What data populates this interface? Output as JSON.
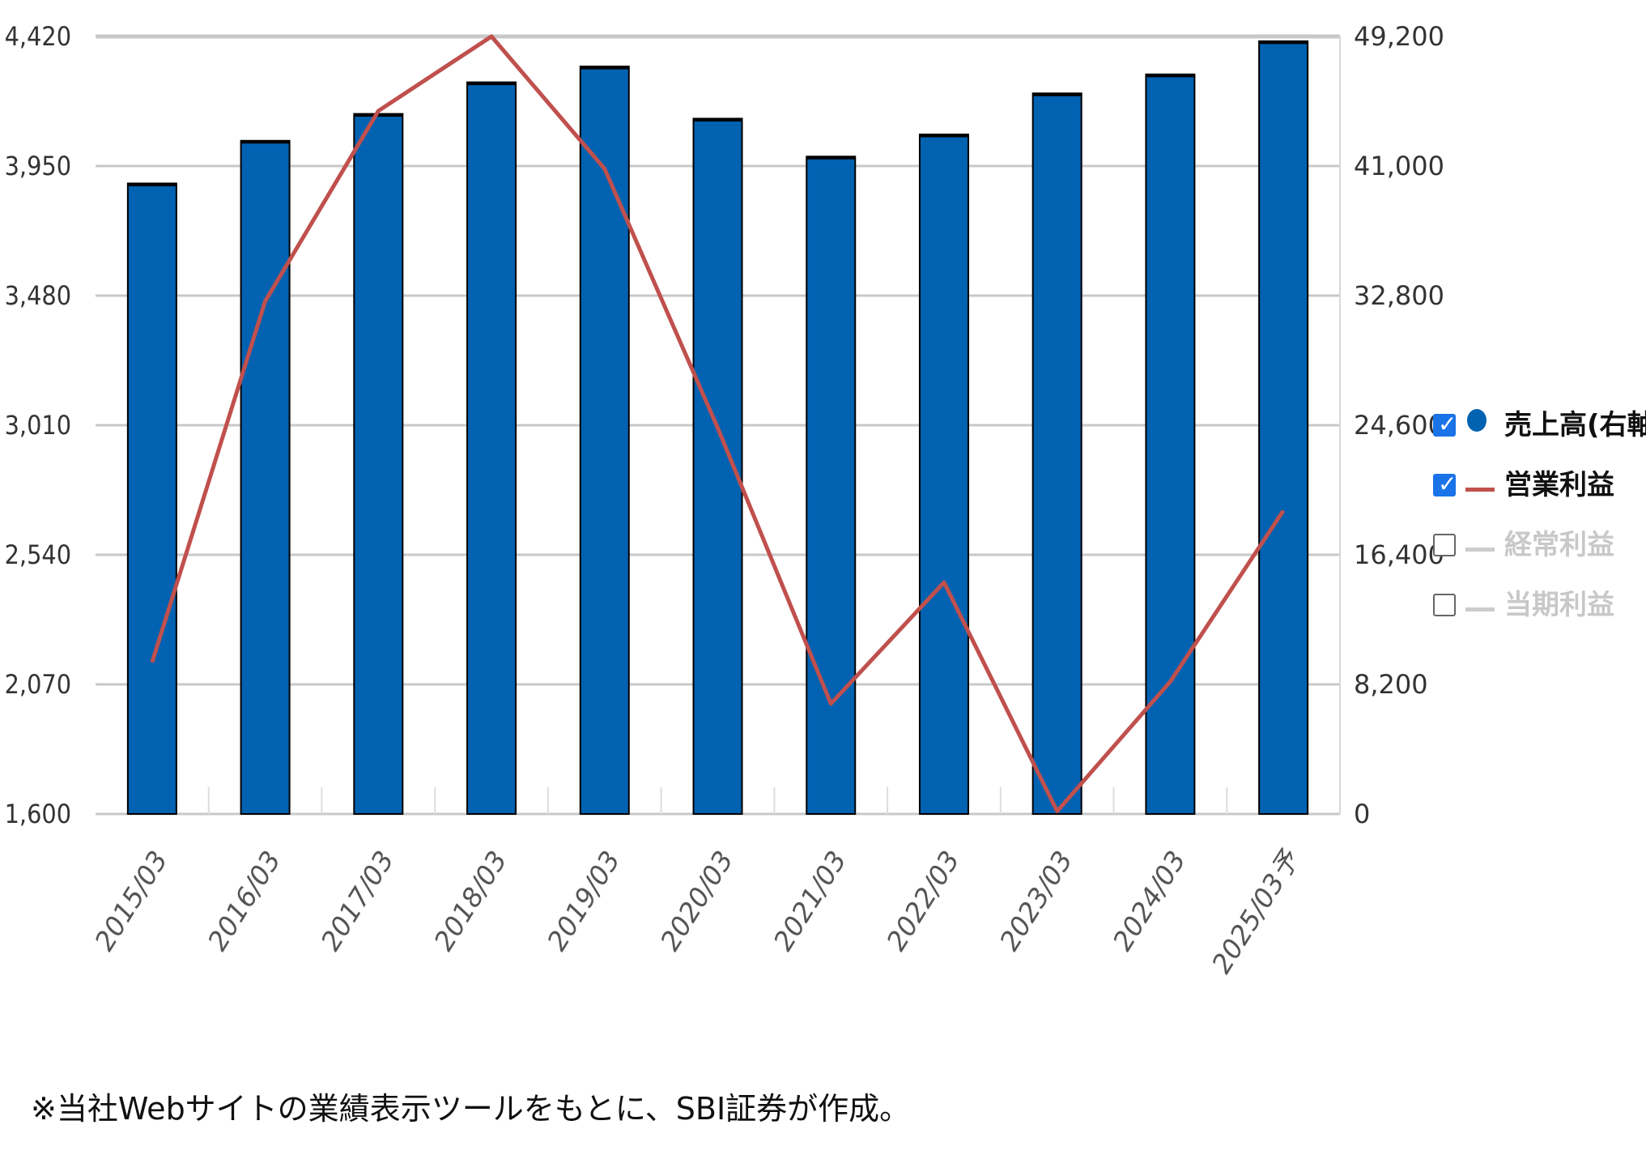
{
  "chart_data": {
    "type": "bar+line",
    "categories": [
      "2015/03",
      "2016/03",
      "2017/03",
      "2018/03",
      "2019/03",
      "2020/03",
      "2021/03",
      "2022/03",
      "2023/03",
      "2024/03",
      "2025/03予"
    ],
    "left_axis": {
      "ylim": [
        1600,
        4420
      ],
      "ticks": [
        "1,600",
        "2,070",
        "2,540",
        "3,010",
        "3,480",
        "3,950",
        "4,420"
      ]
    },
    "right_axis": {
      "ylim": [
        0,
        49200
      ],
      "ticks": [
        "0",
        "8,200",
        "16,400",
        "24,600",
        "32,800",
        "41,000",
        "49,200"
      ]
    },
    "series": [
      {
        "name": "売上高(右軸)",
        "type": "bar",
        "axis": "right",
        "values": [
          39900,
          42600,
          44300,
          46300,
          47300,
          44000,
          41600,
          43000,
          45600,
          46800,
          48900
        ]
      },
      {
        "name": "営業利益",
        "type": "line",
        "axis": "left",
        "values": [
          2150,
          3460,
          4150,
          4420,
          3940,
          3000,
          2000,
          2440,
          1610,
          2080,
          2700
        ]
      }
    ],
    "grid": true
  },
  "legend": {
    "items": [
      {
        "label": "売上高(右軸)",
        "checked": true,
        "marker": "dot",
        "color": "#0062b1",
        "text_color": "#111111"
      },
      {
        "label": "営業利益",
        "checked": true,
        "marker": "line",
        "color": "#c0504d",
        "text_color": "#111111"
      },
      {
        "label": "経常利益",
        "checked": false,
        "marker": "line",
        "color": "#cccccc",
        "text_color": "#c8c8c8"
      },
      {
        "label": "当期利益",
        "checked": false,
        "marker": "line",
        "color": "#cccccc",
        "text_color": "#c8c8c8"
      }
    ]
  },
  "colors": {
    "bar": "#0062b1",
    "line": "#c0504d",
    "grid": "#c8c8c8"
  },
  "footnote": "※当社Webサイトの業績表示ツールをもとに、SBI証券が作成。"
}
